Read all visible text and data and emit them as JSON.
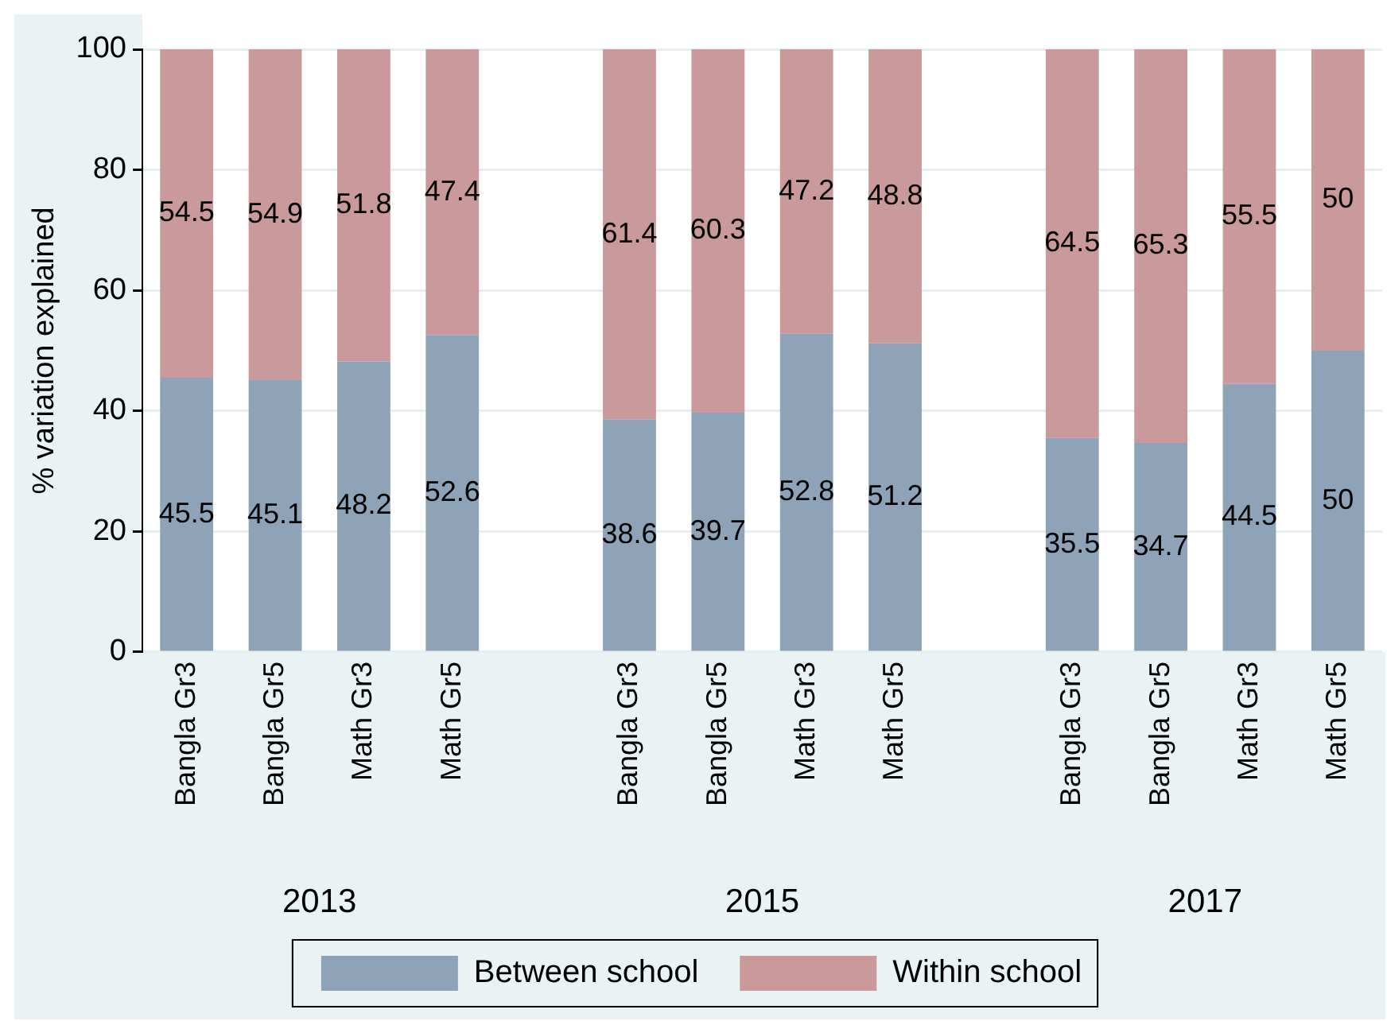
{
  "chart_data": {
    "type": "bar",
    "stacked": true,
    "ylabel": "% variation explained",
    "categories": [
      "Bangla Gr3",
      "Bangla Gr5",
      "Math Gr3",
      "Math Gr5",
      null,
      "Bangla Gr3",
      "Bangla Gr5",
      "Math Gr3",
      "Math Gr5",
      null,
      "Bangla Gr3",
      "Bangla Gr5",
      "Math Gr3",
      "Math Gr5"
    ],
    "series": [
      {
        "name": "Between school",
        "color": "#8ea3b8",
        "values": [
          45.5,
          45.1,
          48.2,
          52.6,
          null,
          38.6,
          39.7,
          52.8,
          51.2,
          null,
          35.5,
          34.7,
          44.5,
          50
        ]
      },
      {
        "name": "Within school",
        "color": "#c9999b",
        "values": [
          54.5,
          54.9,
          51.8,
          47.4,
          null,
          61.4,
          60.3,
          47.2,
          48.8,
          null,
          64.5,
          65.3,
          55.5,
          50
        ]
      }
    ],
    "annotations": [
      "2013",
      "2015",
      "2017"
    ],
    "ylim": [
      0,
      100
    ],
    "yticks": [
      0,
      20,
      40,
      60,
      80,
      100
    ],
    "grid": "y",
    "legend": "bottom",
    "data_labels": true
  }
}
